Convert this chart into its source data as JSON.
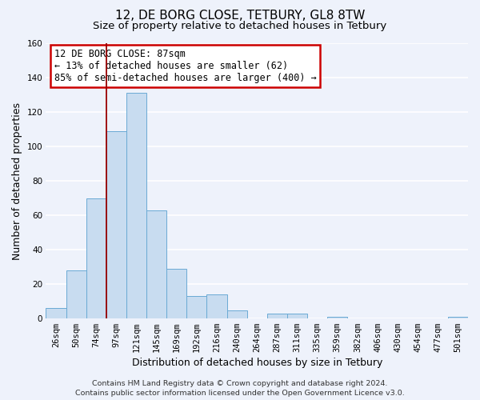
{
  "title": "12, DE BORG CLOSE, TETBURY, GL8 8TW",
  "subtitle": "Size of property relative to detached houses in Tetbury",
  "xlabel": "Distribution of detached houses by size in Tetbury",
  "ylabel": "Number of detached properties",
  "bar_labels": [
    "26sqm",
    "50sqm",
    "74sqm",
    "97sqm",
    "121sqm",
    "145sqm",
    "169sqm",
    "192sqm",
    "216sqm",
    "240sqm",
    "264sqm",
    "287sqm",
    "311sqm",
    "335sqm",
    "359sqm",
    "382sqm",
    "406sqm",
    "430sqm",
    "454sqm",
    "477sqm",
    "501sqm"
  ],
  "bar_values": [
    6,
    28,
    70,
    109,
    131,
    63,
    29,
    13,
    14,
    5,
    0,
    3,
    3,
    0,
    1,
    0,
    0,
    0,
    0,
    0,
    1
  ],
  "bar_color": "#c8dcf0",
  "bar_edge_color": "#6aaad4",
  "ylim": [
    0,
    160
  ],
  "yticks": [
    0,
    20,
    40,
    60,
    80,
    100,
    120,
    140,
    160
  ],
  "annotation_text_line1": "12 DE BORG CLOSE: 87sqm",
  "annotation_text_line2": "← 13% of detached houses are smaller (62)",
  "annotation_text_line3": "85% of semi-detached houses are larger (400) →",
  "annotation_box_color": "#ffffff",
  "annotation_border_color": "#cc0000",
  "vline_color": "#990000",
  "footer_line1": "Contains HM Land Registry data © Crown copyright and database right 2024.",
  "footer_line2": "Contains public sector information licensed under the Open Government Licence v3.0.",
  "background_color": "#eef2fb",
  "grid_color": "#ffffff",
  "title_fontsize": 11,
  "subtitle_fontsize": 9.5,
  "axis_label_fontsize": 9,
  "tick_fontsize": 7.5,
  "footer_fontsize": 6.8,
  "vline_x": 2.5
}
